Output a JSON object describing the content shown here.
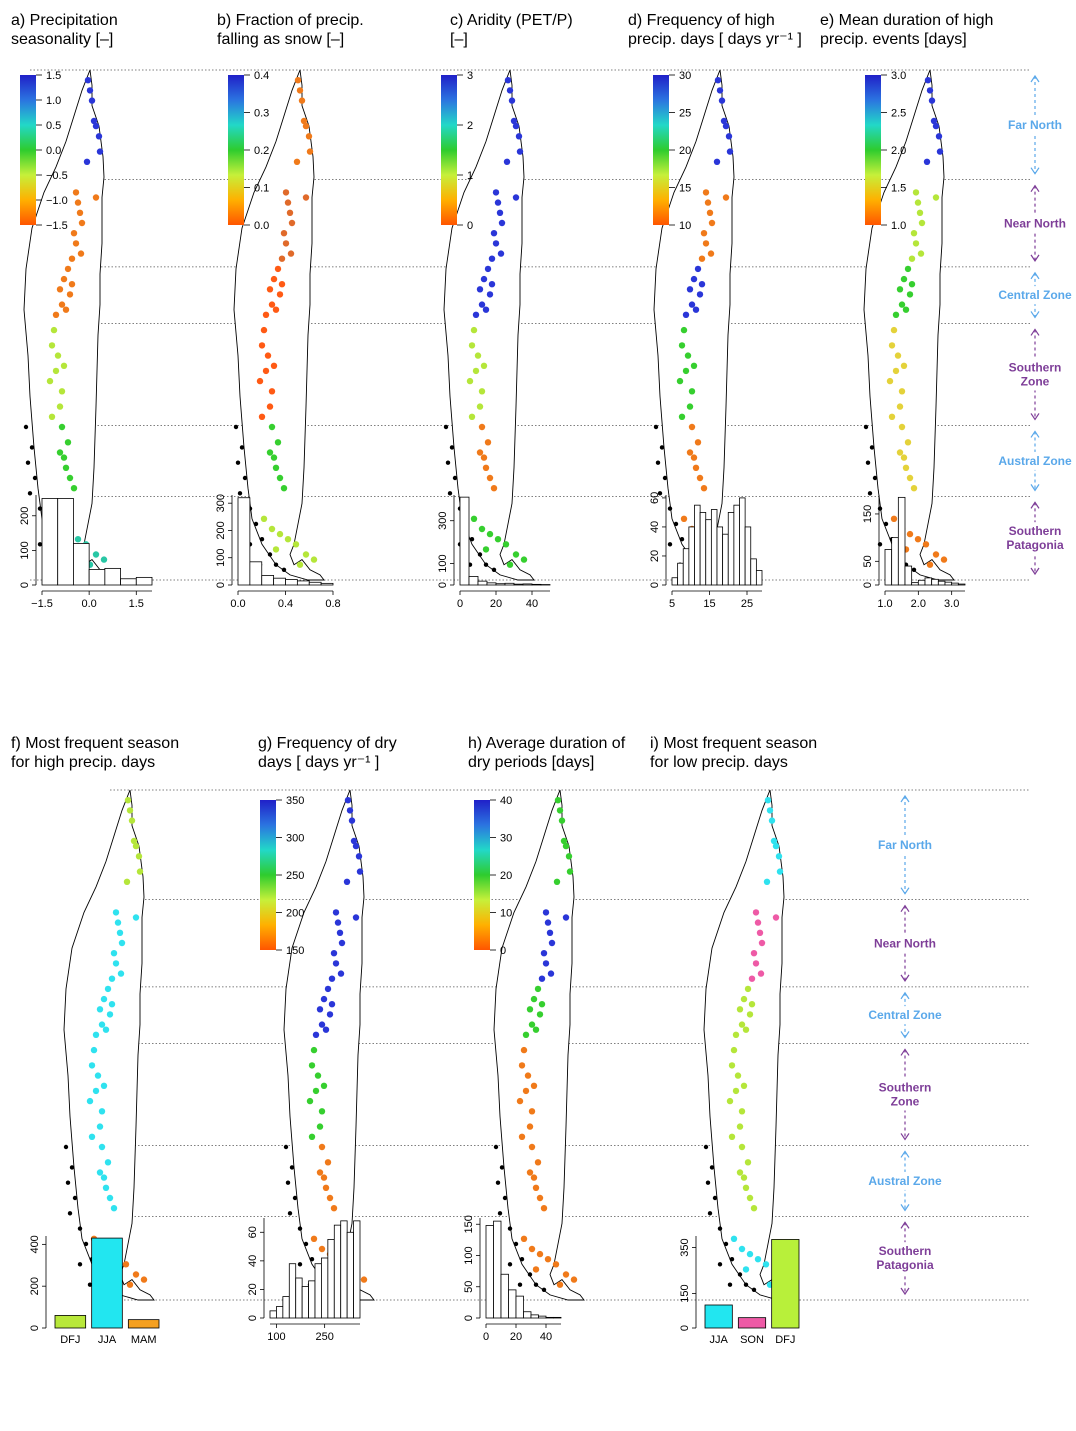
{
  "colors": {
    "far_north": "#5aa8ea",
    "near_north": "#7e3e98",
    "divider": "#555555",
    "scale_stops": [
      "#ff5500",
      "#ffb000",
      "#c6f03a",
      "#2ecc2e",
      "#22d8c8",
      "#2b74e0",
      "#2020c8"
    ]
  },
  "zones": [
    {
      "name": "Far North",
      "color": "#5aa8ea"
    },
    {
      "name": "Near North",
      "color": "#7e3e98"
    },
    {
      "name": "Central Zone",
      "color": "#5aa8ea"
    },
    {
      "name": "Southern\nZone",
      "color": "#7e3e98"
    },
    {
      "name": "Austral Zone",
      "color": "#5aa8ea"
    },
    {
      "name": "Southern\nPatagonia",
      "color": "#7e3e98"
    }
  ],
  "chart_data": [
    {
      "panel": "a",
      "title": "a) Precipitation\nseasonality [–]",
      "type": "scatter",
      "legend": {
        "type": "colorbar",
        "ticks": [
          "1.5",
          "1.0",
          "0.5",
          "0.0",
          "−0.5",
          "−1.0",
          "−1.5"
        ]
      },
      "zone_colors": [
        "blue",
        "orange",
        "orange",
        "yellow-green",
        "green",
        "teal"
      ],
      "histogram": {
        "type": "bar",
        "bin_edges": [
          -1.5,
          -1.0,
          -0.5,
          0.0,
          0.5,
          1.0,
          1.5,
          2.0
        ],
        "values": [
          250,
          250,
          120,
          45,
          48,
          18,
          22,
          30
        ],
        "x_ticks": [
          "−1.5",
          "0.0",
          "1.5"
        ],
        "y_ticks": [
          "0",
          "100",
          "200"
        ],
        "ylim": [
          0,
          260
        ]
      }
    },
    {
      "panel": "b",
      "title": "b) Fraction of precip.\nfalling as snow [–]",
      "type": "scatter",
      "legend": {
        "type": "colorbar",
        "ticks": [
          "0.4",
          "0.3",
          "0.2",
          "0.1",
          "0.0"
        ]
      },
      "zone_colors": [
        "orange",
        "orange-blue",
        "orange-red",
        "orange-red",
        "green",
        "yellow-green"
      ],
      "histogram": {
        "type": "bar",
        "bin_edges": [
          0.0,
          0.1,
          0.2,
          0.3,
          0.4,
          0.5,
          0.6,
          0.7,
          0.8
        ],
        "values": [
          320,
          85,
          35,
          25,
          20,
          15,
          10,
          6
        ],
        "x_ticks": [
          "0.0",
          "0.4",
          "0.8"
        ],
        "y_ticks": [
          "0",
          "100",
          "200",
          "300"
        ],
        "ylim": [
          0,
          330
        ]
      }
    },
    {
      "panel": "c",
      "title": "c) Aridity (PET/P)\n[–]",
      "type": "scatter",
      "legend": {
        "type": "colorbar",
        "ticks": [
          "3",
          "2",
          "1",
          "0"
        ]
      },
      "zone_colors": [
        "blue",
        "blue",
        "blue",
        "yellow-green",
        "orange",
        "green"
      ],
      "histogram": {
        "type": "bar",
        "bin_edges": [
          0,
          5,
          10,
          15,
          20,
          25,
          30,
          35,
          40,
          45,
          50
        ],
        "values": [
          410,
          40,
          18,
          10,
          6,
          8,
          4,
          5,
          3,
          2
        ],
        "x_ticks": [
          "0",
          "20",
          "40"
        ],
        "y_ticks": [
          "0",
          "100",
          "300"
        ],
        "ylim": [
          0,
          420
        ]
      }
    },
    {
      "panel": "d",
      "title": "d) Frequency of high\nprecip. days [ days yr⁻¹ ]",
      "type": "scatter",
      "legend": {
        "type": "colorbar",
        "ticks": [
          "30",
          "25",
          "20",
          "15",
          "10"
        ]
      },
      "zone_colors": [
        "blue",
        "orange",
        "blue",
        "green",
        "orange",
        "orange"
      ],
      "histogram": {
        "type": "bar",
        "bin_edges": [
          5,
          6.5,
          8,
          9.5,
          11,
          12.5,
          14,
          15.5,
          17,
          18.5,
          20,
          21.5,
          23,
          24.5,
          26,
          27.5,
          29
        ],
        "values": [
          5,
          15,
          25,
          40,
          55,
          50,
          45,
          52,
          40,
          35,
          50,
          55,
          60,
          40,
          18,
          10
        ],
        "x_ticks": [
          "5",
          "15",
          "25"
        ],
        "y_ticks": [
          "0",
          "20",
          "40",
          "60"
        ],
        "ylim": [
          0,
          62
        ]
      }
    },
    {
      "panel": "e",
      "title": "e) Mean duration of high\nprecip. events [days]",
      "type": "scatter",
      "legend": {
        "type": "colorbar",
        "ticks": [
          "3.0",
          "2.5",
          "2.0",
          "1.5",
          "1.0"
        ]
      },
      "zone_colors": [
        "blue",
        "yellow-green",
        "green",
        "yellow",
        "yellow",
        "orange"
      ],
      "histogram": {
        "type": "bar",
        "bin_edges": [
          1.0,
          1.2,
          1.4,
          1.6,
          1.8,
          2.0,
          2.2,
          2.4,
          2.6,
          2.8,
          3.0,
          3.2,
          3.4
        ],
        "values": [
          75,
          100,
          185,
          40,
          5,
          10,
          15,
          12,
          8,
          6,
          4,
          2
        ],
        "x_ticks": [
          "1.0",
          "2.0",
          "3.0"
        ],
        "y_ticks": [
          "0",
          "50",
          "150"
        ],
        "ylim": [
          0,
          190
        ]
      }
    },
    {
      "panel": "f",
      "title": "f) Most frequent season\nfor high precip. days",
      "type": "scatter",
      "legend": null,
      "zone_colors": [
        "yellow-green",
        "cyan",
        "cyan",
        "cyan",
        "cyan",
        "orange"
      ],
      "histogram": {
        "type": "bar",
        "categories": [
          "DFJ",
          "JJA",
          "MAM"
        ],
        "values": [
          60,
          430,
          40
        ],
        "bar_colors": [
          "#b8e83a",
          "#22e6f0",
          "#f5a020"
        ],
        "y_ticks": [
          "0",
          "200",
          "400"
        ],
        "ylim": [
          0,
          440
        ]
      }
    },
    {
      "panel": "g",
      "title": "g) Frequency of dry\ndays [ days yr⁻¹ ]",
      "type": "scatter",
      "legend": {
        "type": "colorbar",
        "ticks": [
          "350",
          "300",
          "250",
          "200",
          "150"
        ]
      },
      "zone_colors": [
        "blue",
        "blue",
        "blue",
        "green",
        "orange",
        "orange"
      ],
      "histogram": {
        "type": "bar",
        "bin_edges": [
          80,
          100,
          120,
          140,
          160,
          180,
          200,
          220,
          240,
          260,
          280,
          300,
          320,
          340,
          360
        ],
        "values": [
          5,
          8,
          15,
          38,
          28,
          22,
          26,
          38,
          42,
          55,
          65,
          68,
          60,
          68
        ],
        "x_ticks": [
          "100",
          "250"
        ],
        "y_ticks": [
          "0",
          "20",
          "40",
          "60"
        ],
        "ylim": [
          0,
          70
        ]
      }
    },
    {
      "panel": "h",
      "title": "h) Average duration of\ndry periods [days]",
      "type": "scatter",
      "legend": {
        "type": "colorbar",
        "ticks": [
          "40",
          "30",
          "20",
          "10",
          "0"
        ]
      },
      "zone_colors": [
        "green",
        "blue",
        "green",
        "orange",
        "orange",
        "orange"
      ],
      "histogram": {
        "type": "bar",
        "bin_edges": [
          0,
          5,
          10,
          15,
          20,
          25,
          30,
          35,
          40,
          45,
          50
        ],
        "values": [
          148,
          155,
          70,
          45,
          35,
          10,
          5,
          3,
          1,
          1
        ],
        "x_ticks": [
          "0",
          "20",
          "40"
        ],
        "y_ticks": [
          "0",
          "50",
          "100",
          "150"
        ],
        "ylim": [
          0,
          160
        ]
      }
    },
    {
      "panel": "i",
      "title": "i) Most frequent season\nfor low precip. days",
      "type": "scatter",
      "legend": null,
      "zone_colors": [
        "cyan",
        "pink",
        "yellow-green",
        "yellow-green",
        "yellow-green",
        "cyan"
      ],
      "histogram": {
        "type": "bar",
        "categories": [
          "JJA",
          "SON",
          "DFJ"
        ],
        "values": [
          100,
          45,
          385
        ],
        "bar_colors": [
          "#22e6f0",
          "#ee5aa6",
          "#b8f03a"
        ],
        "y_ticks": [
          "0",
          "150",
          "350"
        ],
        "ylim": [
          0,
          400
        ]
      }
    }
  ]
}
